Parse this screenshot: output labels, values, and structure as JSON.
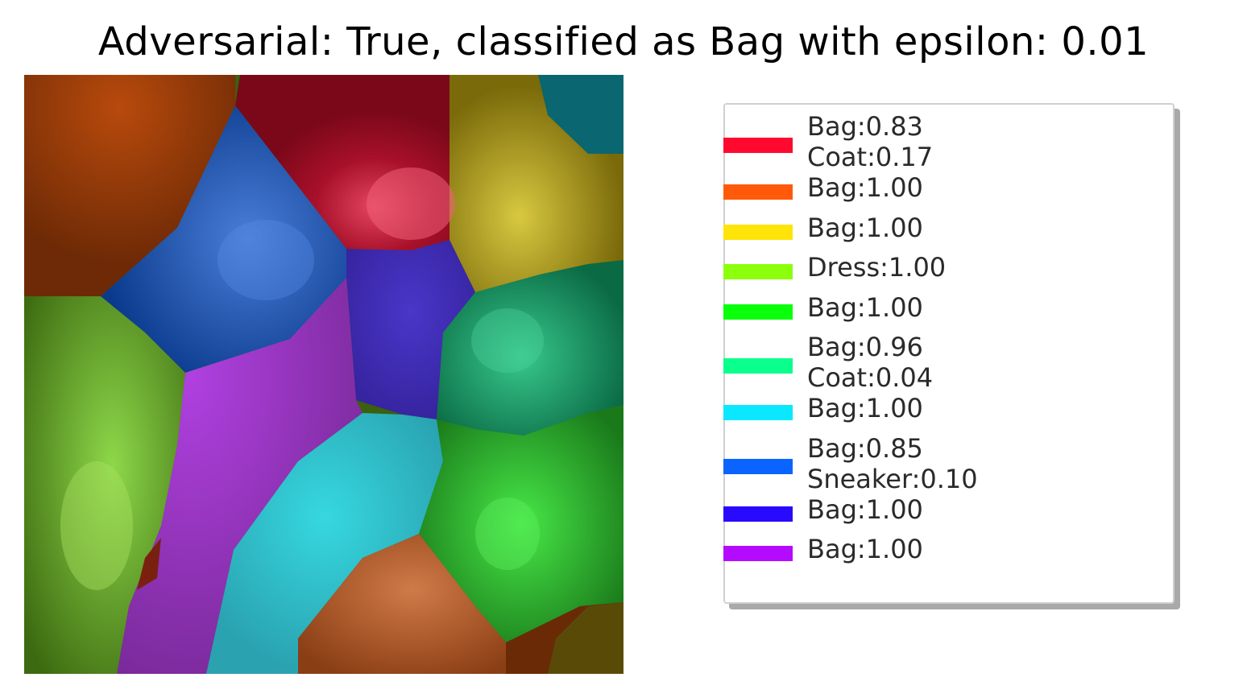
{
  "title": "Adversarial: True, classified as Bag with epsilon: 0.01",
  "legend": {
    "entries": [
      {
        "color": "#ff0a2e",
        "lines": [
          "Bag:0.83",
          "Coat:0.17"
        ]
      },
      {
        "color": "#ff5a0a",
        "lines": [
          "Bag:1.00"
        ]
      },
      {
        "color": "#ffe40a",
        "lines": [
          "Bag:1.00"
        ]
      },
      {
        "color": "#8cff0a",
        "lines": [
          "Dress:1.00"
        ]
      },
      {
        "color": "#0aff0a",
        "lines": [
          "Bag:1.00"
        ]
      },
      {
        "color": "#0aff8c",
        "lines": [
          "Bag:0.96",
          "Coat:0.04"
        ]
      },
      {
        "color": "#0ae8ff",
        "lines": [
          "Bag:1.00"
        ]
      },
      {
        "color": "#0a64ff",
        "lines": [
          "Bag:0.85",
          "Sneaker:0.10"
        ]
      },
      {
        "color": "#2a0aff",
        "lines": [
          "Bag:1.00"
        ]
      },
      {
        "color": "#b40aff",
        "lines": [
          "Bag:1.00"
        ]
      }
    ]
  }
}
